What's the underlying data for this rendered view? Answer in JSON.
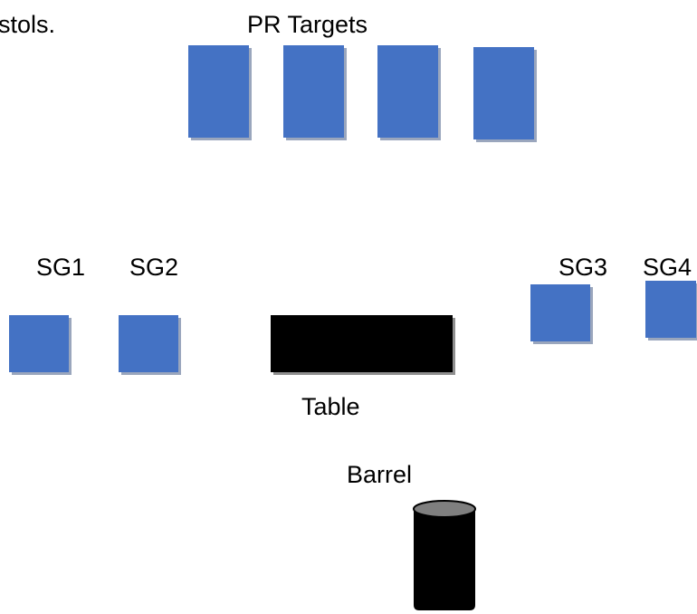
{
  "header_partial_text": "stols.",
  "pr_targets": {
    "label": "PR Targets",
    "count": 4
  },
  "shotgun_targets": [
    {
      "label": "SG1"
    },
    {
      "label": "SG2"
    },
    {
      "label": "SG3"
    },
    {
      "label": "SG4"
    }
  ],
  "table": {
    "label": "Table"
  },
  "barrel": {
    "label": "Barrel"
  },
  "colors": {
    "target_fill": "#4472c4",
    "table_fill": "#000000",
    "barrel_fill": "#000000",
    "barrel_top": "#7f7f7f"
  }
}
